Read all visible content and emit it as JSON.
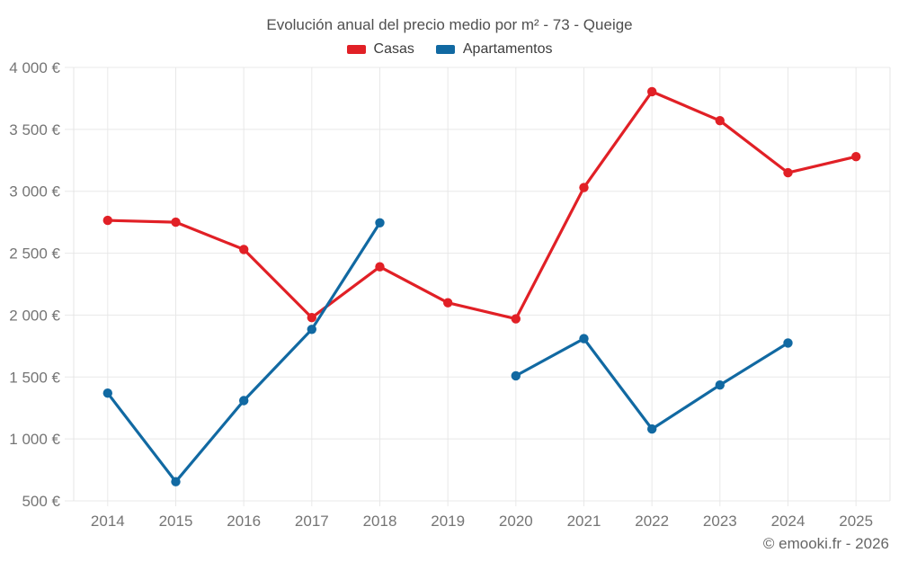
{
  "chart_data": {
    "type": "line",
    "title": "Evolución anual del precio medio por m² - 73 - Queige",
    "categories": [
      "2014",
      "2015",
      "2016",
      "2017",
      "2018",
      "2019",
      "2020",
      "2021",
      "2022",
      "2023",
      "2024",
      "2025"
    ],
    "series": [
      {
        "name": "Casas",
        "color": "#e12026",
        "values": [
          2765,
          2750,
          2530,
          1980,
          2390,
          2100,
          1970,
          3030,
          3805,
          3570,
          3150,
          3280
        ]
      },
      {
        "name": "Apartamentos",
        "color": "#1169a2",
        "values": [
          1370,
          655,
          1310,
          1885,
          2745,
          null,
          1510,
          1810,
          1080,
          1435,
          1775,
          null
        ]
      }
    ],
    "ylim": [
      500,
      4000
    ],
    "ytick_step": 500,
    "ytick_labels": [
      "500 €",
      "1 000 €",
      "1 500 €",
      "2 000 €",
      "2 500 €",
      "3 000 €",
      "3 500 €",
      "4 000 €"
    ],
    "currency_suffix": "€",
    "grid": true,
    "legend_position": "top"
  },
  "footer": {
    "copyright": "© emooki.fr - 2026"
  }
}
